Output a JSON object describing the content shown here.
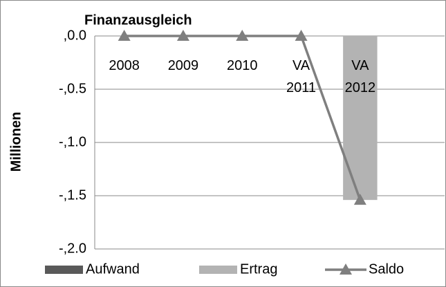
{
  "chart_data": {
    "type": "bar",
    "title": "Finanzausgleich",
    "ylabel": "Millionen",
    "categories": [
      "2008",
      "2009",
      "2010",
      "VA 2011",
      "VA 2012"
    ],
    "series": [
      {
        "name": "Aufwand",
        "type": "bar",
        "color": "#595959",
        "values": [
          0,
          0,
          0,
          0,
          0
        ]
      },
      {
        "name": "Ertrag",
        "type": "bar",
        "color": "#b3b3b3",
        "values": [
          0,
          0,
          0,
          0,
          -1.54
        ]
      },
      {
        "name": "Saldo",
        "type": "line",
        "color": "#7f7f7f",
        "values": [
          0,
          0,
          0,
          0,
          -1.54
        ]
      }
    ],
    "ylim": [
      -2.0,
      0.0
    ],
    "yticks": [
      {
        "value": 0,
        "label": ",0.0"
      },
      {
        "value": -0.5,
        "label": "-,0.5"
      },
      {
        "value": -1.0,
        "label": "-,1.0"
      },
      {
        "value": -1.5,
        "label": "-,1.5"
      },
      {
        "value": -2.0,
        "label": "-,2.0"
      }
    ],
    "grid": true,
    "legend": "bottom"
  }
}
